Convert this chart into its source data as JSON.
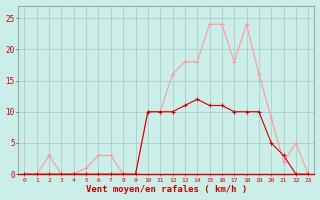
{
  "x": [
    0,
    1,
    2,
    3,
    4,
    5,
    6,
    7,
    8,
    9,
    10,
    11,
    12,
    13,
    14,
    15,
    16,
    17,
    18,
    19,
    20,
    21,
    22,
    23
  ],
  "wind_avg": [
    0,
    0,
    0,
    0,
    0,
    0,
    0,
    0,
    0,
    0,
    10,
    10,
    10,
    11,
    12,
    11,
    11,
    10,
    10,
    10,
    5,
    3,
    0,
    0
  ],
  "wind_gust": [
    0,
    0,
    3,
    0,
    0,
    1,
    3,
    3,
    0,
    0,
    10,
    10,
    16,
    18,
    18,
    24,
    24,
    18,
    24,
    16,
    9,
    2,
    5,
    0
  ],
  "bg_color": "#cceee8",
  "grid_color": "#aacccc",
  "line_avg_color": "#cc0000",
  "line_gust_color": "#ff9999",
  "xlabel": "Vent moyen/en rafales ( km/h )",
  "ylabel_ticks": [
    0,
    5,
    10,
    15,
    20,
    25
  ],
  "ylim": [
    0,
    27
  ],
  "xlim": [
    -0.5,
    23.5
  ],
  "xlabel_color": "#cc0000",
  "tick_color": "#cc0000"
}
